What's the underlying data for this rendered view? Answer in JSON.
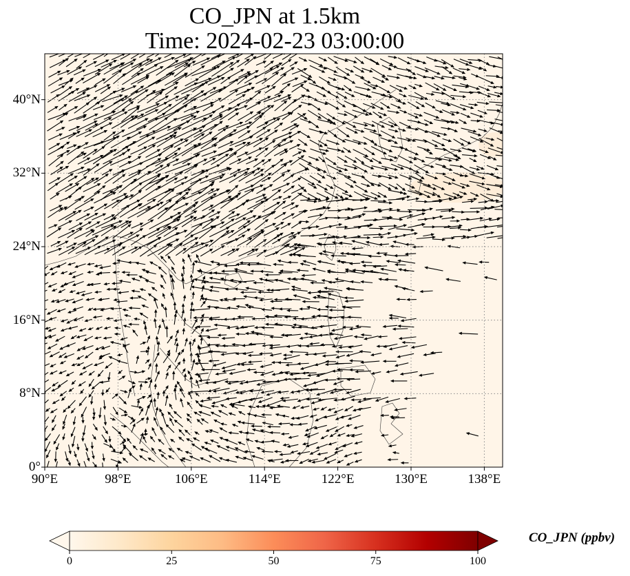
{
  "title_line1": "CO_JPN at 1.5km",
  "title_line2": "Time: 2024-02-23 03:00:00",
  "map": {
    "lon_range": [
      90,
      140
    ],
    "lat_range": [
      0,
      45
    ],
    "background_color": "#fff5e8",
    "high_concentration_color": "#feecd6",
    "gridline_style": "dotted",
    "lon_ticks": [
      90,
      98,
      106,
      114,
      122,
      130,
      138
    ],
    "lat_ticks": [
      0,
      8,
      16,
      24,
      32,
      40
    ],
    "lon_tick_labels": [
      "90°E",
      "98°E",
      "106°E",
      "114°E",
      "122°E",
      "130°E",
      "138°E"
    ],
    "lat_tick_labels": [
      "0°",
      "8°N",
      "16°N",
      "24°N",
      "32°N",
      "40°N"
    ],
    "vector_field": "wind vectors (black arrows)"
  },
  "colorbar": {
    "label": "CO_JPN (ppbv)",
    "colormap": "OrRd",
    "range": [
      0,
      100
    ],
    "extend": "both",
    "ticks": [
      0,
      25,
      50,
      75,
      100
    ],
    "tick_labels": [
      "0",
      "25",
      "50",
      "75",
      "100"
    ],
    "colors": [
      "#fff7ec",
      "#fee8c8",
      "#fdd49e",
      "#fdbb84",
      "#fc8d59",
      "#ef6548",
      "#d7301f",
      "#b30000",
      "#7f0000"
    ]
  }
}
